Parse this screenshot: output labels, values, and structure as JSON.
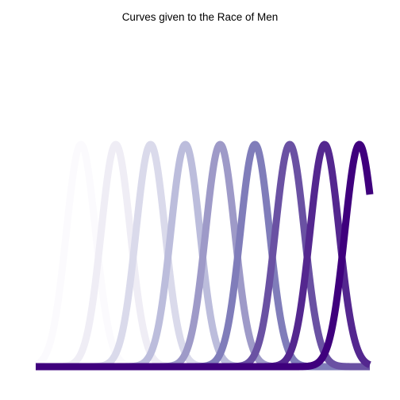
{
  "chart_data": {
    "type": "line",
    "title": "Curves given to the Race of Men",
    "xlabel": "",
    "ylabel": "",
    "axes_visible": false,
    "grid": false,
    "legend": "none",
    "curve_shape": "gaussian",
    "curve_sd": 0.42,
    "xlim": [
      -0.3,
      9.3
    ],
    "ylim": [
      0,
      1.5
    ],
    "series": [
      {
        "center": 1,
        "color": "#fbfafd"
      },
      {
        "center": 2,
        "color": "#efedf5"
      },
      {
        "center": 3,
        "color": "#dadaeb"
      },
      {
        "center": 4,
        "color": "#bcbddc"
      },
      {
        "center": 5,
        "color": "#9e9ac8"
      },
      {
        "center": 6,
        "color": "#807dba"
      },
      {
        "center": 7,
        "color": "#6a51a3"
      },
      {
        "center": 8,
        "color": "#54278f"
      },
      {
        "center": 9,
        "color": "#3f007d"
      }
    ]
  }
}
